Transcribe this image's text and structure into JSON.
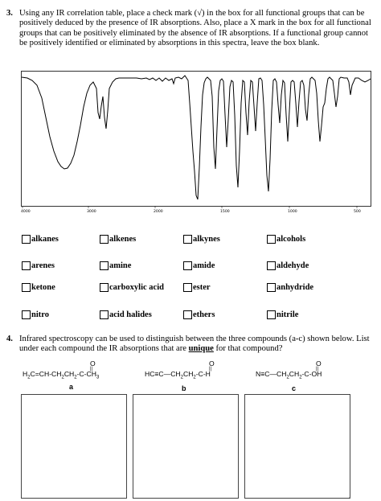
{
  "q3": {
    "number": "3.",
    "text": "Using any IR correlation table, place a check mark (√) in the box for all functional groups that can be positively deduced by the presence of IR absorptions. Also, place a X mark in the box for all functional groups that can be positively eliminated by the absence of IR absorptions. If a functional group cannot be positively identified or eliminated by absorptions in this spectra, leave the box blank."
  },
  "spectrum": {
    "x_ticks": [
      "4000",
      "3000",
      "2000",
      "1500",
      "1000",
      "500"
    ]
  },
  "checkboxes": [
    "alkanes",
    "alkenes",
    "alkynes",
    "alcohols",
    "arenes",
    "amine",
    "amide",
    "aldehyde",
    "ketone",
    "carboxylic acid",
    "ester",
    "anhydride",
    "nitro",
    "acid halides",
    "ethers",
    "nitrile"
  ],
  "q4": {
    "number": "4.",
    "text_before": "Infrared spectroscopy can be used to distinguish between the three compounds (a-c) shown below. List under each compound the IR absorptions that are ",
    "text_emph": "unique",
    "text_after": " for that compound?"
  },
  "compounds": [
    {
      "formula": "H2C=CH-CH2CH2-C-CH3",
      "label": "a"
    },
    {
      "formula": "HC≡C-CH2CH2-C-H",
      "label": "b"
    },
    {
      "formula": "N≡C-CH2CH2-C-OH",
      "label": "c"
    }
  ],
  "carbonyl_o": "O"
}
